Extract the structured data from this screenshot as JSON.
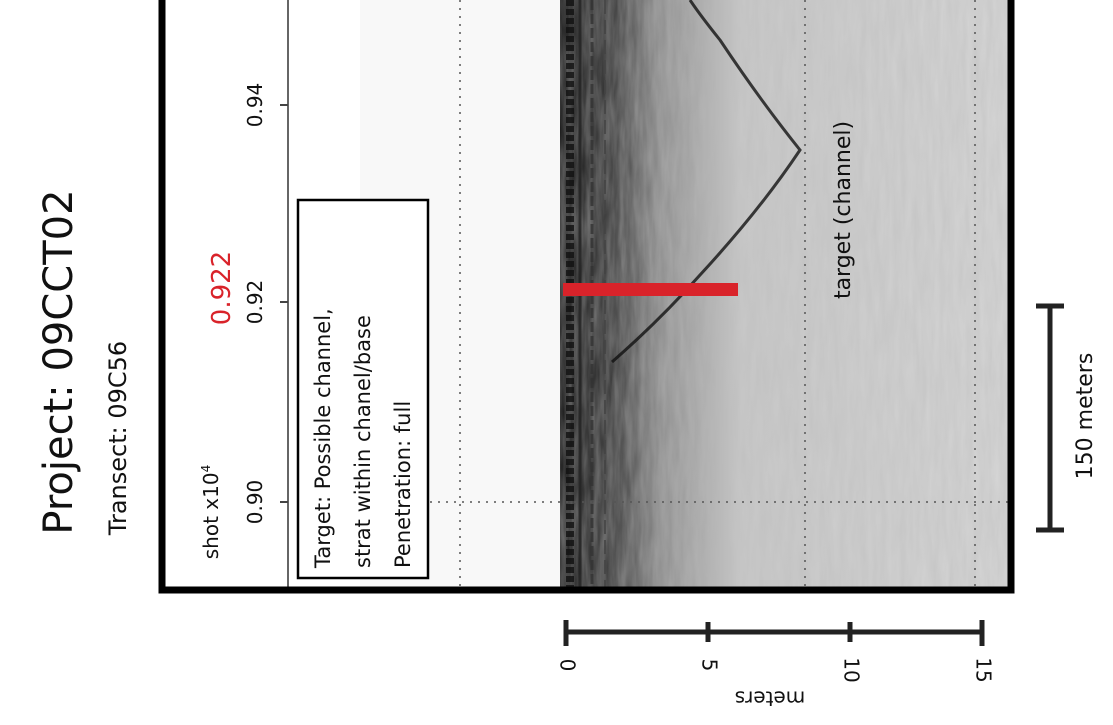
{
  "header": {
    "project": "Project: 09CCT02",
    "transect": "Transect: 09C56"
  },
  "shot_axis": {
    "label": "shot x10",
    "label_exponent": "4",
    "ticks": [
      "0.90",
      "0.92",
      "0.94"
    ]
  },
  "marker": "0.922",
  "note": [
    "Target: Possible channel,",
    "strat within chanel/base",
    "Penetration: full"
  ],
  "annotation": "target (channel)",
  "scale_bar": "150 meters",
  "depth_axis": {
    "ticks": [
      "0",
      "5",
      "10",
      "15"
    ],
    "label": "meters"
  }
}
